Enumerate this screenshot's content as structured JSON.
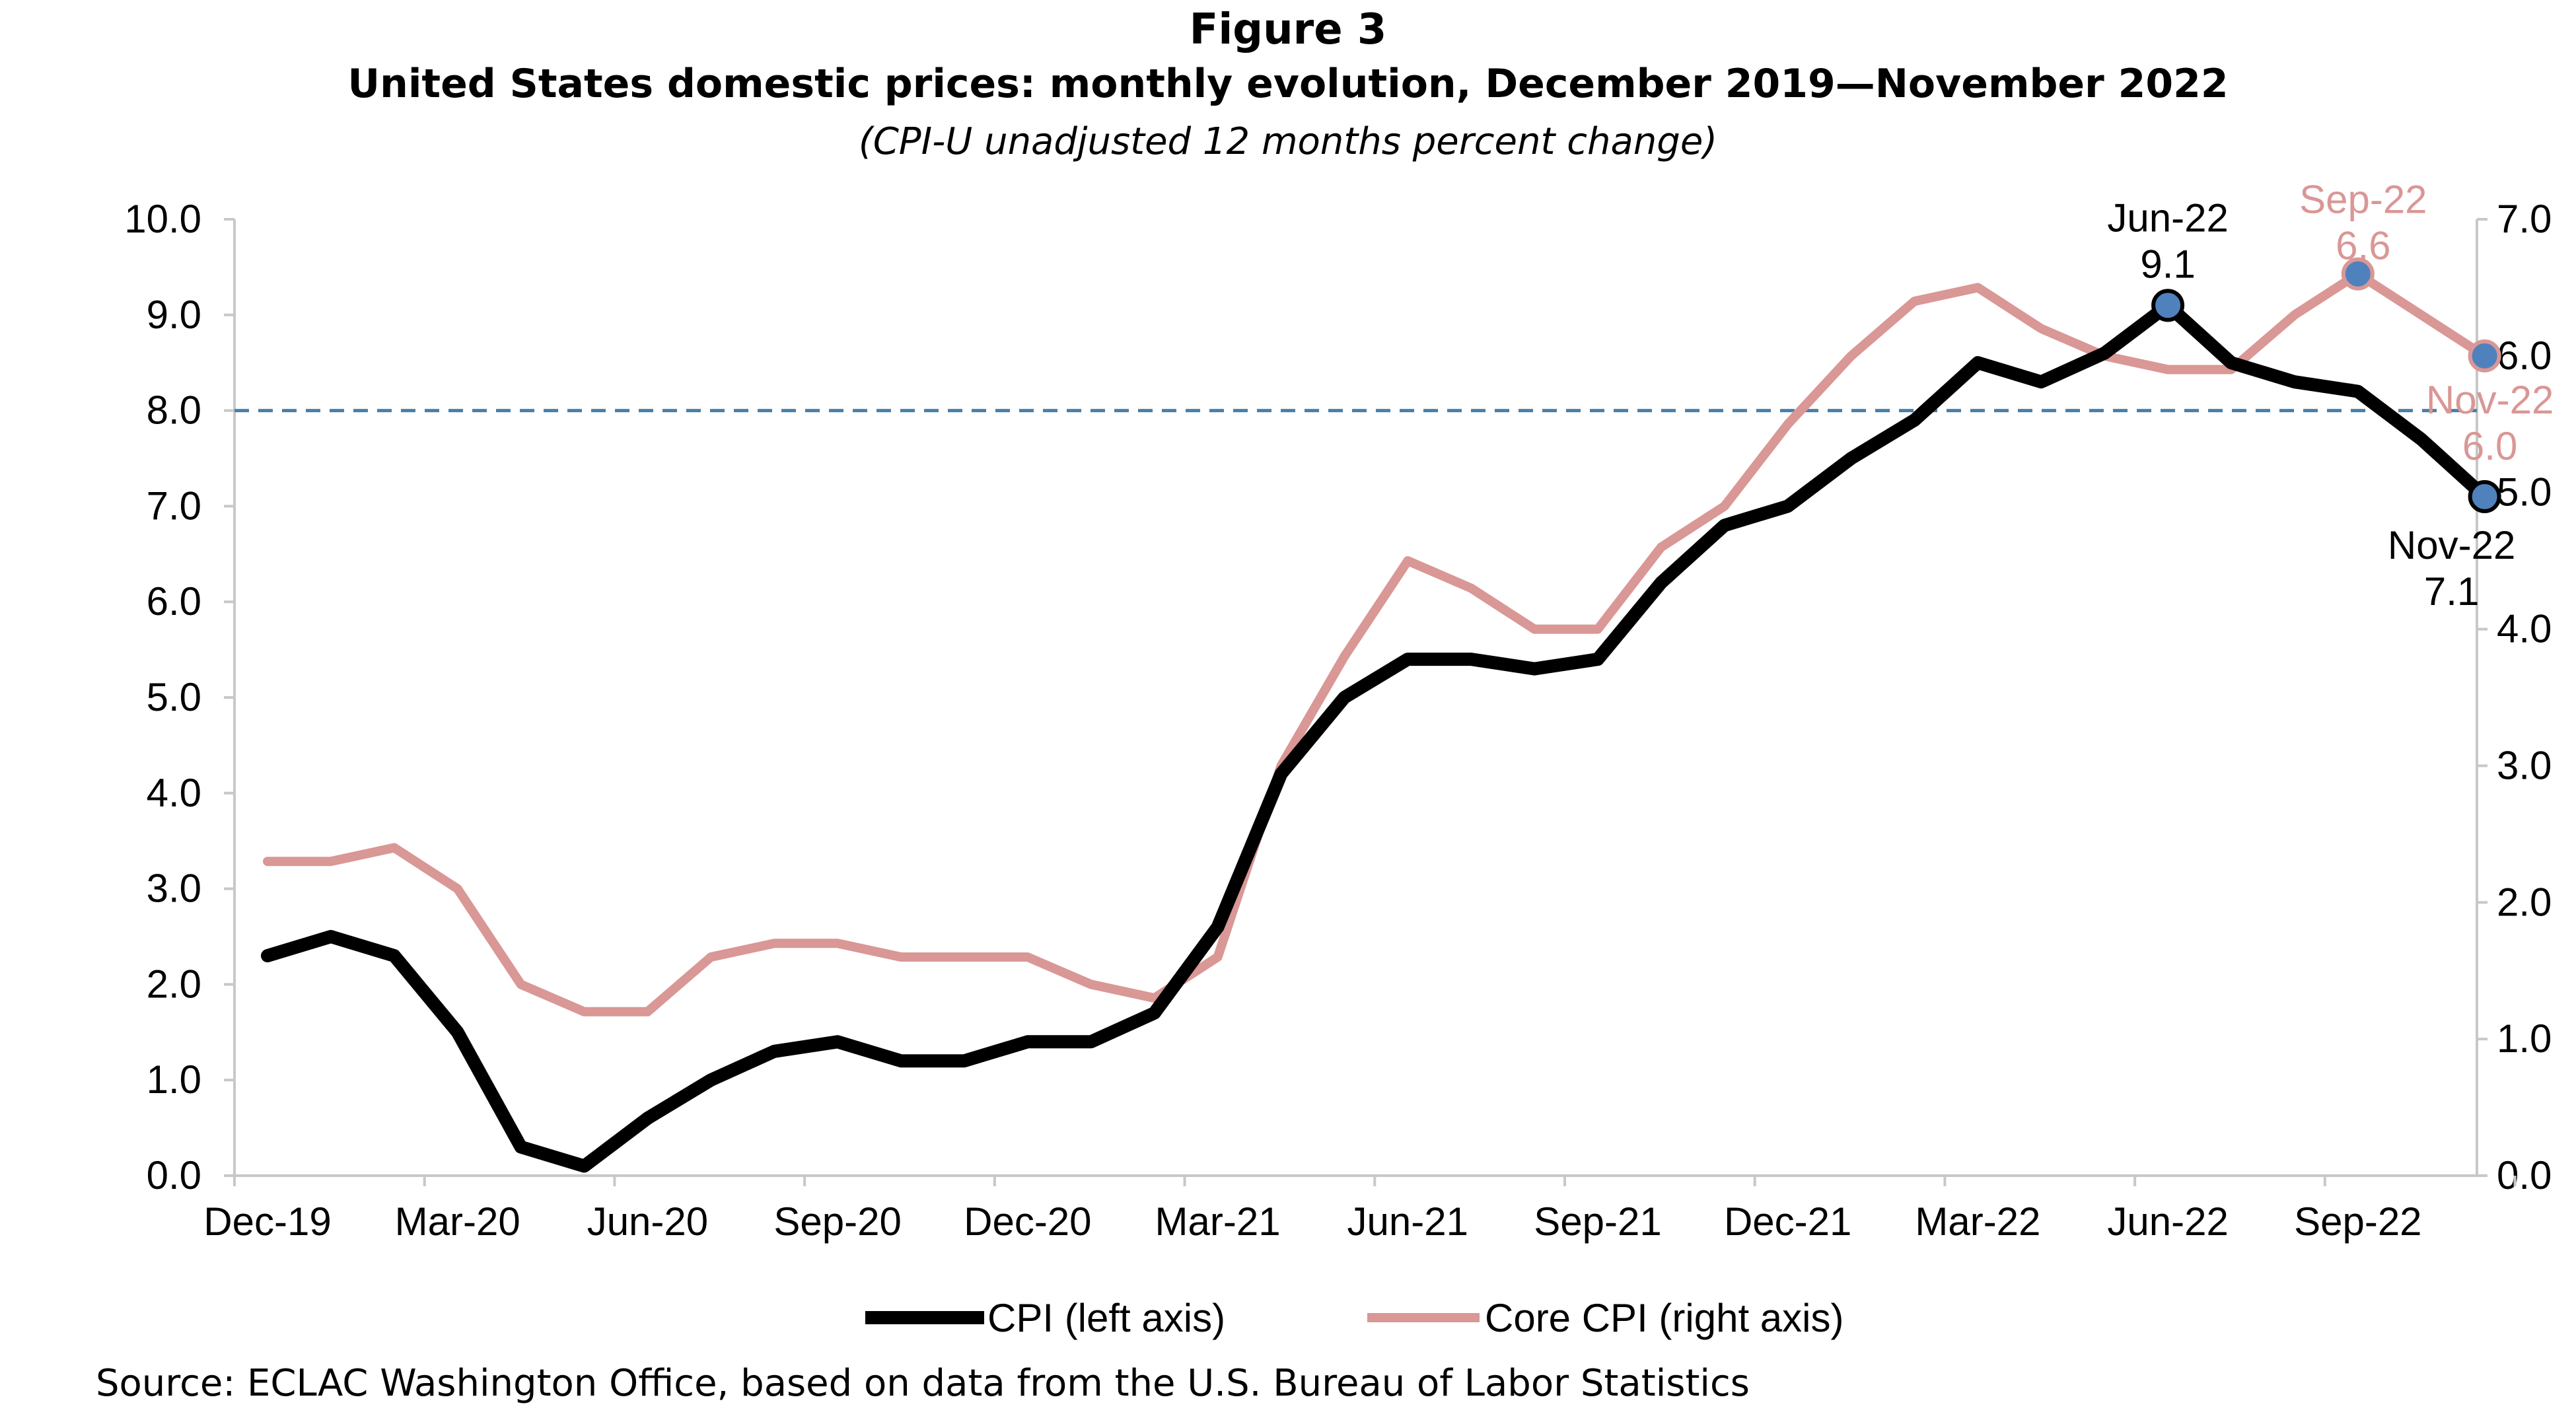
{
  "figure": {
    "label": "Figure 3",
    "title": "United States domestic prices: monthly evolution, December 2019—November 2022",
    "subtitle": "(CPI-U unadjusted 12 months percent change)",
    "source": "Source: ECLAC Washington Office, based on data from the U.S. Bureau of Labor Statistics"
  },
  "chart_data": {
    "type": "line",
    "title": "United States domestic prices: monthly evolution, December 2019—November 2022",
    "x": [
      "Dec-19",
      "Jan-20",
      "Feb-20",
      "Mar-20",
      "Apr-20",
      "May-20",
      "Jun-20",
      "Jul-20",
      "Aug-20",
      "Sep-20",
      "Oct-20",
      "Nov-20",
      "Dec-20",
      "Jan-21",
      "Feb-21",
      "Mar-21",
      "Apr-21",
      "May-21",
      "Jun-21",
      "Jul-21",
      "Aug-21",
      "Sep-21",
      "Oct-21",
      "Nov-21",
      "Dec-21",
      "Jan-22",
      "Feb-22",
      "Mar-22",
      "Apr-22",
      "May-22",
      "Jun-22",
      "Jul-22",
      "Aug-22",
      "Sep-22",
      "Oct-22",
      "Nov-22"
    ],
    "x_tick_labels": [
      "Dec-19",
      "Mar-20",
      "Jun-20",
      "Sep-20",
      "Dec-20",
      "Mar-21",
      "Jun-21",
      "Sep-21",
      "Dec-21",
      "Mar-22",
      "Jun-22",
      "Sep-22"
    ],
    "y_left": {
      "min": 0,
      "max": 10,
      "ticks": [
        "0.0",
        "1.0",
        "2.0",
        "3.0",
        "4.0",
        "5.0",
        "6.0",
        "7.0",
        "8.0",
        "9.0",
        "10.0"
      ]
    },
    "y_right": {
      "min": 0,
      "max": 7,
      "ticks": [
        "0.0",
        "1.0",
        "2.0",
        "3.0",
        "4.0",
        "5.0",
        "6.0",
        "7.0"
      ]
    },
    "reference_line": {
      "axis": "left",
      "value": 8.0,
      "style": "dashed",
      "color": "#4a7fa8"
    },
    "series": [
      {
        "name": "CPI (left axis)",
        "axis": "left",
        "color": "#000000",
        "values": [
          2.3,
          2.5,
          2.3,
          1.5,
          0.3,
          0.1,
          0.6,
          1.0,
          1.3,
          1.4,
          1.2,
          1.2,
          1.4,
          1.4,
          1.7,
          2.6,
          4.2,
          5.0,
          5.4,
          5.4,
          5.3,
          5.4,
          6.2,
          6.8,
          7.0,
          7.5,
          7.9,
          8.5,
          8.3,
          8.6,
          9.1,
          8.5,
          8.3,
          8.2,
          7.7,
          7.1
        ]
      },
      {
        "name": "Core CPI (right axis)",
        "axis": "right",
        "color": "#d99795",
        "values": [
          2.3,
          2.3,
          2.4,
          2.1,
          1.4,
          1.2,
          1.2,
          1.6,
          1.7,
          1.7,
          1.6,
          1.6,
          1.6,
          1.4,
          1.3,
          1.6,
          3.0,
          3.8,
          4.5,
          4.3,
          4.0,
          4.0,
          4.6,
          4.9,
          5.5,
          6.0,
          6.4,
          6.5,
          6.2,
          6.0,
          5.9,
          5.9,
          6.3,
          6.6,
          6.3,
          6.0
        ]
      }
    ],
    "annotations": [
      {
        "series": "CPI (left axis)",
        "month": "Jun-22",
        "value": 9.1,
        "label": "Jun-22",
        "value_label": "9.1"
      },
      {
        "series": "CPI (left axis)",
        "month": "Nov-22",
        "value": 7.1,
        "label": "Nov-22",
        "value_label": "7.1"
      },
      {
        "series": "Core CPI (right axis)",
        "month": "Sep-22",
        "value": 6.6,
        "label": "Sep-22",
        "value_label": "6.6"
      },
      {
        "series": "Core CPI (right axis)",
        "month": "Nov-22",
        "value": 6.0,
        "label": "Nov-22",
        "value_label": "6.0"
      }
    ],
    "marker_color": "#4f81bd",
    "legend": {
      "placement": "bottom"
    },
    "grid": false
  }
}
